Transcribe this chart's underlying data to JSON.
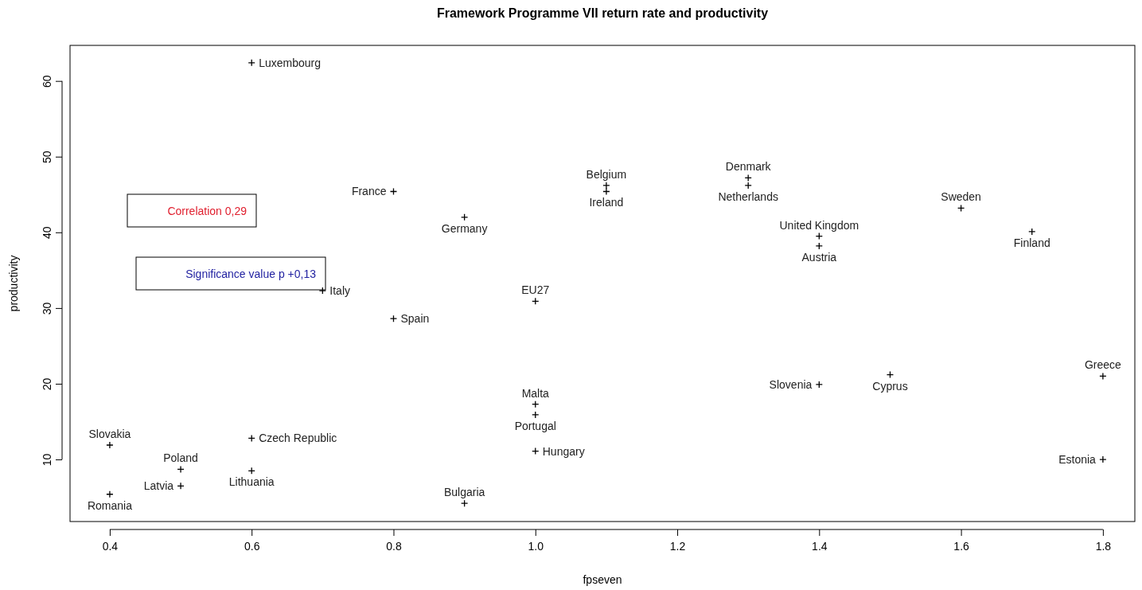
{
  "chart_data": {
    "type": "scatter",
    "title": "Framework Programme VII return rate and productivity",
    "xlabel": "fpseven",
    "ylabel": "productivity",
    "xlim": [
      0.344,
      1.845
    ],
    "ylim": [
      1.8,
      64.7
    ],
    "xticks": [
      0.4,
      0.6,
      0.8,
      {
        "value": 1,
        "label": "1.0"
      },
      1.2,
      1.4,
      1.6,
      1.8
    ],
    "yticks": [
      10,
      20,
      30,
      40,
      50,
      60
    ],
    "grid": false,
    "marker": "cross",
    "series": [
      {
        "color": "#000000",
        "x": [
          0.6,
          0.8,
          0.9,
          0.7,
          0.8,
          1.0,
          1.1,
          1.1,
          1.3,
          1.3,
          1.6,
          1.7,
          1.4,
          1.4,
          1.8,
          1.8,
          1.5,
          1.4,
          1.0,
          1.0,
          1.0,
          0.9,
          0.6,
          0.6,
          0.4,
          0.4,
          0.5,
          0.5
        ],
        "values": [
          62.4,
          45.4,
          42.0,
          32.3,
          28.6,
          30.9,
          46.2,
          45.4,
          47.2,
          46.2,
          43.2,
          40.1,
          39.5,
          38.2,
          21.0,
          10.0,
          21.2,
          19.9,
          17.3,
          15.9,
          11.1,
          4.2,
          12.8,
          8.5,
          11.9,
          5.4,
          8.7,
          6.5
        ]
      }
    ],
    "annotations": [
      {
        "text": "Luxembourg",
        "x": 0.6,
        "y": 62.4
      },
      {
        "text": "France",
        "x": 0.8,
        "y": 45.4
      },
      {
        "text": "Germany",
        "x": 0.9,
        "y": 42.0
      },
      {
        "text": "Italy",
        "x": 0.7,
        "y": 32.3
      },
      {
        "text": "Spain",
        "x": 0.8,
        "y": 28.6
      },
      {
        "text": "EU27",
        "x": 1.0,
        "y": 30.9
      },
      {
        "text": "Belgium",
        "x": 1.1,
        "y": 46.2
      },
      {
        "text": "Ireland",
        "x": 1.1,
        "y": 45.4
      },
      {
        "text": "Denmark",
        "x": 1.3,
        "y": 47.2
      },
      {
        "text": "Netherlands",
        "x": 1.3,
        "y": 46.2
      },
      {
        "text": "Sweden",
        "x": 1.6,
        "y": 43.2
      },
      {
        "text": "Finland",
        "x": 1.7,
        "y": 40.1
      },
      {
        "text": "United Kingdom",
        "x": 1.4,
        "y": 39.5
      },
      {
        "text": "Austria",
        "x": 1.4,
        "y": 38.2
      },
      {
        "text": "Greece",
        "x": 1.8,
        "y": 21.0
      },
      {
        "text": "Estonia",
        "x": 1.8,
        "y": 10.0
      },
      {
        "text": "Cyprus",
        "x": 1.5,
        "y": 21.2
      },
      {
        "text": "Slovenia",
        "x": 1.4,
        "y": 19.9
      },
      {
        "text": "Malta",
        "x": 1.0,
        "y": 17.3
      },
      {
        "text": "Portugal",
        "x": 1.0,
        "y": 15.9
      },
      {
        "text": "Hungary",
        "x": 1.0,
        "y": 11.1
      },
      {
        "text": "Bulgaria",
        "x": 0.9,
        "y": 4.2
      },
      {
        "text": "Czech Republic",
        "x": 0.6,
        "y": 12.8
      },
      {
        "text": "Lithuania",
        "x": 0.6,
        "y": 8.5
      },
      {
        "text": "Slovakia",
        "x": 0.4,
        "y": 11.9
      },
      {
        "text": "Romania",
        "x": 0.4,
        "y": 5.4
      },
      {
        "text": "Poland",
        "x": 0.5,
        "y": 8.7
      },
      {
        "text": "Latvia",
        "x": 0.5,
        "y": 6.5
      },
      "Correlation 0,29",
      "Significance value p +0,13"
    ]
  }
}
